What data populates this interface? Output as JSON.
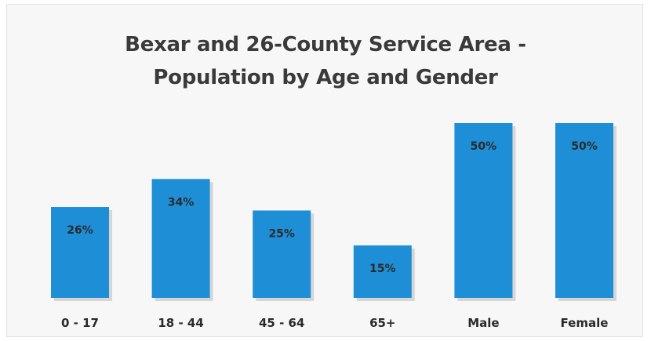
{
  "chart_data": {
    "type": "bar",
    "title": "Bexar and 26-County Service Area -",
    "subtitle": "Population by Age and Gender",
    "categories": [
      "0 - 17",
      "18 - 44",
      "45 - 64",
      "65+",
      "Male",
      "Female"
    ],
    "values": [
      26,
      34,
      25,
      15,
      50,
      50
    ],
    "data_labels": [
      "26%",
      "34%",
      "25%",
      "15%",
      "50%",
      "50%"
    ],
    "xlabel": "",
    "ylabel": "",
    "ylim": [
      0,
      50
    ],
    "grid": false,
    "legend": "none",
    "colors": {
      "bar": "#1e8fd6",
      "background": "#f7f7f7",
      "text": "#2a2a2a"
    }
  }
}
